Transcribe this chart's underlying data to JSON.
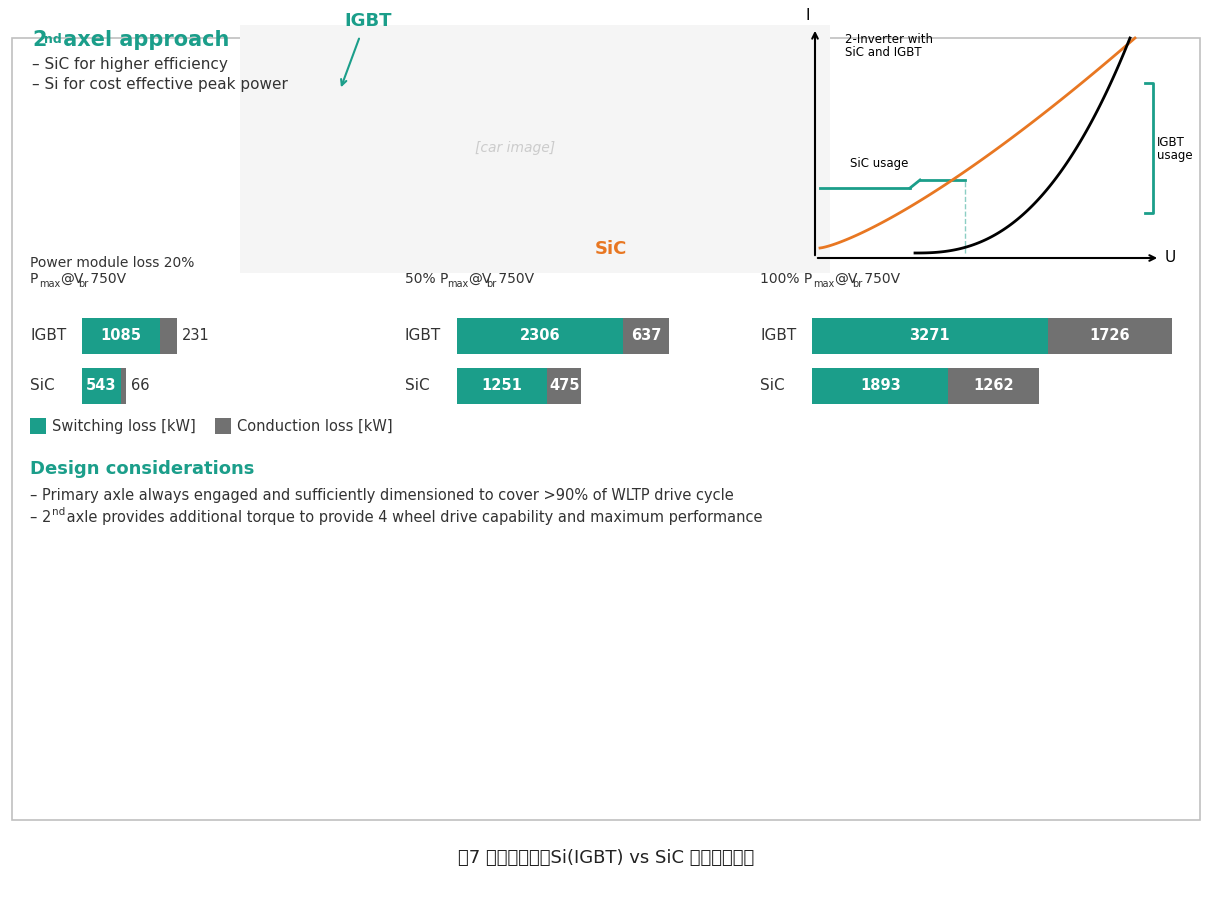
{
  "title": "图7 不同工况下的Si(IGBT) vs SiC 功耗性能对比",
  "background_color": "#ffffff",
  "border_color": "#c0c0c0",
  "teal_color": "#1b9e8a",
  "gray_color": "#717171",
  "text_color": "#333333",
  "groups": [
    {
      "title_l1": "Power module loss 20%",
      "title_l2_prefix": "P",
      "title_l2_sub1": "max",
      "title_l2_mid": "@V",
      "title_l2_sub2": "br",
      "title_l2_end": " 750V",
      "igbt_switch": 1085,
      "igbt_conduct": 231,
      "sic_switch": 543,
      "sic_conduct": 66
    },
    {
      "title_l1_prefix": "50% P",
      "title_l1_sub1": "max",
      "title_l1_mid": "@V",
      "title_l1_sub2": "br",
      "title_l1_end": " 750V",
      "igbt_switch": 2306,
      "igbt_conduct": 637,
      "sic_switch": 1251,
      "sic_conduct": 475
    },
    {
      "title_l1_prefix": "100% P",
      "title_l1_sub1": "max",
      "title_l1_mid": "@V",
      "title_l1_sub2": "br",
      "title_l1_end": " 750V",
      "igbt_switch": 3271,
      "igbt_conduct": 1726,
      "sic_switch": 1893,
      "sic_conduct": 1262
    }
  ],
  "axel_title_num": "2",
  "axel_title_sup": "nd",
  "axel_title_rest": " axel approach",
  "bullet1": "– SiC for higher efficiency",
  "bullet2": "– Si for cost effective peak power",
  "design_title": "Design considerations",
  "design_b1": "– Primary axle always engaged and sufficiently dimensioned to cover >90% of WLTP drive cycle",
  "design_b2_pre": "– 2",
  "design_b2_sup": "nd",
  "design_b2_rest": " axle provides additional torque to provide 4 wheel drive capability and maximum performance",
  "legend_switch": "Switching loss [kW]",
  "legend_conduct": "Conduction loss [kW]",
  "igbt_label_color": "#1b9e8a",
  "sic_label_color": "#e87722",
  "graph_teal": "#1b9e8a",
  "graph_orange": "#e87722"
}
